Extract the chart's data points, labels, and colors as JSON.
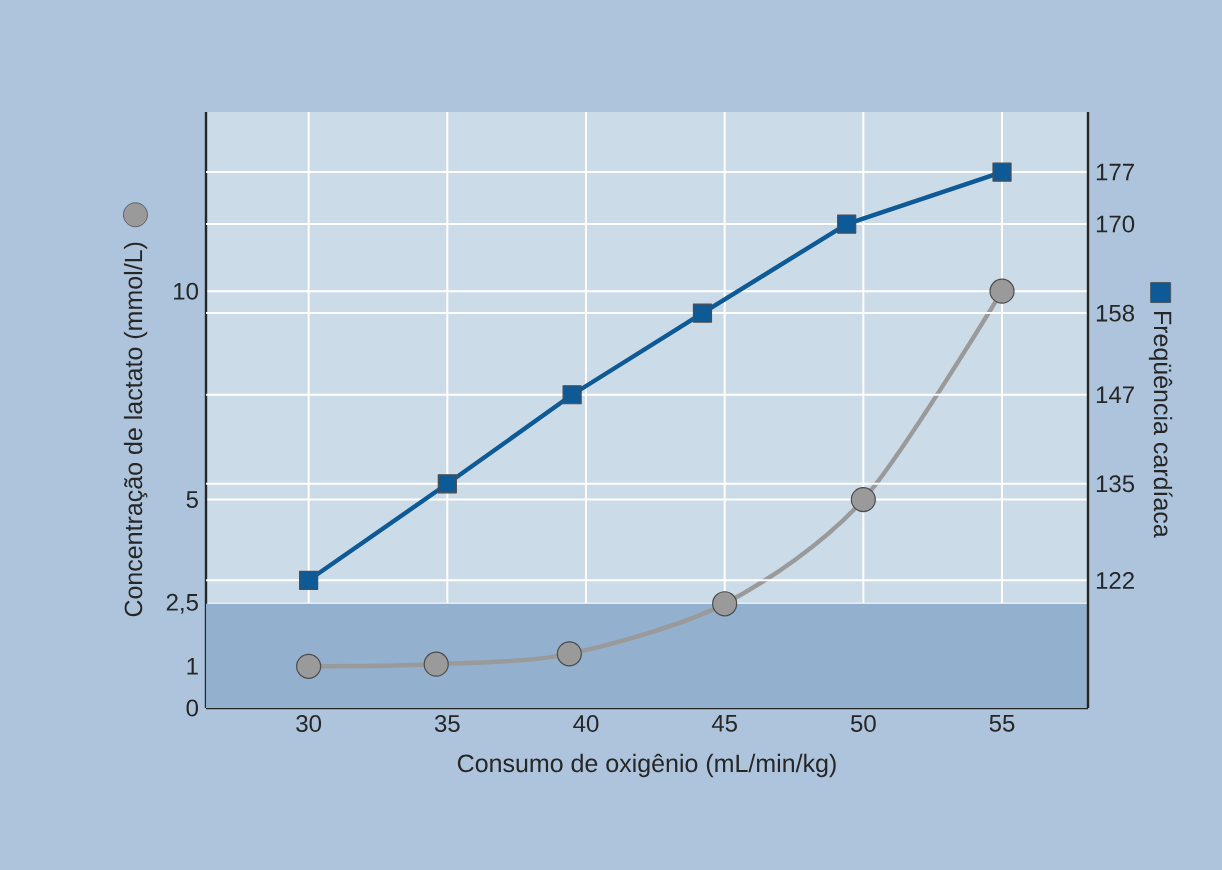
{
  "chart_data": {
    "type": "line",
    "xlabel": "Consumo de oxigênio (mL/min/kg)",
    "ylabel": "Concentração de lactato (mmol/L)",
    "y2label": "Freqüência cardíaca",
    "xlim": [
      26.3,
      58.1
    ],
    "xticks": [
      30,
      35,
      40,
      45,
      50,
      55
    ],
    "ylim": [
      0,
      14.3
    ],
    "yticks": [
      0,
      1,
      {
        "value": 2.5,
        "label": "2,5"
      },
      5,
      10
    ],
    "y2lim": [
      104.8,
      185.1
    ],
    "y2ticks": [
      122,
      135,
      147,
      158,
      170,
      177
    ],
    "grid": true,
    "line_style": "solid",
    "bands": [
      {
        "axis": "y",
        "from": 0,
        "to": 2.5,
        "color": "#93b0cf"
      }
    ],
    "series": [
      {
        "color": "#9a9a9a",
        "marker": "circle",
        "x": [
          30,
          34.6,
          39.4,
          45,
          50,
          55
        ],
        "values": [
          1,
          1.05,
          1.3,
          2.5,
          5,
          10
        ]
      },
      {
        "color": "#0d5a96",
        "marker": "square",
        "axis": "y2",
        "x": [
          30,
          35,
          39.5,
          44.2,
          49.4,
          55
        ],
        "values": [
          122,
          135,
          147,
          158,
          170,
          177
        ]
      }
    ]
  }
}
